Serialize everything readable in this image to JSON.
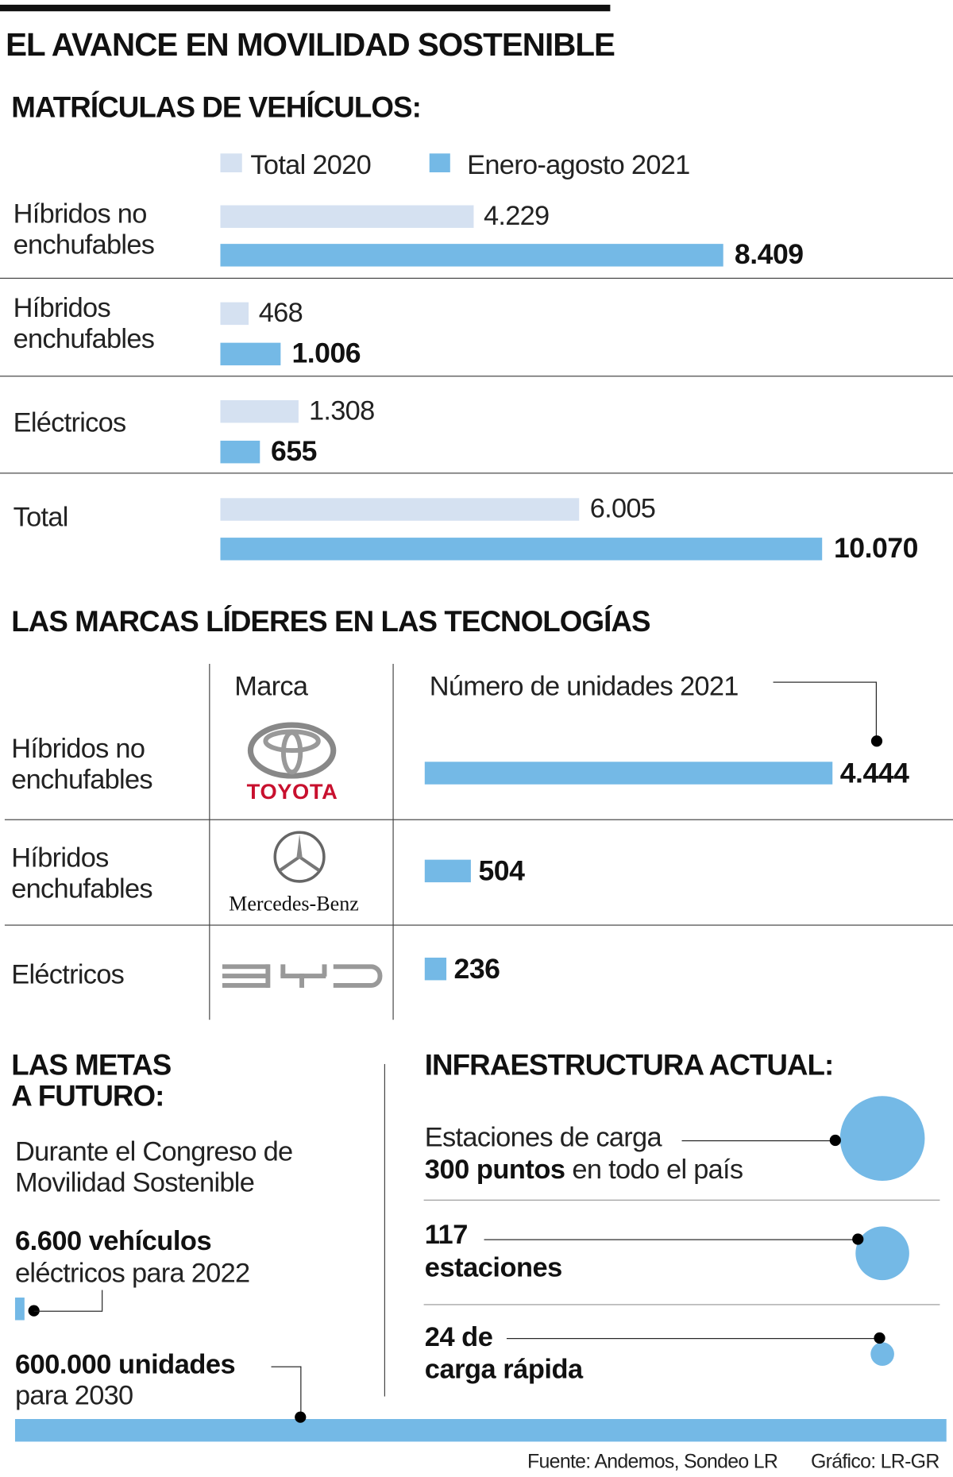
{
  "title": "EL AVANCE EN MOVILIDAD SOSTENIBLE",
  "colors": {
    "total_2020": "#d5e1f1",
    "enero_agosto_2021": "#74b9e6",
    "toyota_red": "#c8102e"
  },
  "chart_data": [
    {
      "type": "bar",
      "title": "MATRÍCULAS DE VEHÍCULOS:",
      "categories": [
        "Híbridos no enchufables",
        "Híbridos enchufables",
        "Eléctricos",
        "Total"
      ],
      "category_lines": [
        [
          "Híbridos no",
          "enchufables"
        ],
        [
          "Híbridos",
          "enchufables"
        ],
        [
          "Eléctricos"
        ],
        [
          "Total"
        ]
      ],
      "series": [
        {
          "name": "Total 2020",
          "values": [
            4229,
            468,
            1308,
            6005
          ],
          "labels": [
            "4.229",
            "468",
            "1.308",
            "6.005"
          ]
        },
        {
          "name": "Enero-agosto 2021",
          "values": [
            8409,
            1006,
            655,
            10070
          ],
          "labels": [
            "8.409",
            "1.006",
            "655",
            "10.070"
          ]
        }
      ],
      "legend": "top",
      "orientation": "horizontal"
    },
    {
      "type": "bar",
      "title": "LAS MARCAS LÍDERES EN LAS TECNOLOGÍAS",
      "column_headers": [
        "Marca",
        "Número de unidades 2021"
      ],
      "categories": [
        "Híbridos no enchufables",
        "Híbridos enchufables",
        "Eléctricos"
      ],
      "category_lines": [
        [
          "Híbridos no",
          "enchufables"
        ],
        [
          "Híbridos",
          "enchufables"
        ],
        [
          "Eléctricos"
        ]
      ],
      "brands": [
        "Toyota",
        "Mercedes-Benz",
        "BYD"
      ],
      "brand_logo_text": [
        "TOYOTA",
        "Mercedes-Benz",
        "BYD"
      ],
      "values": [
        4444,
        504,
        236
      ],
      "labels": [
        "4.444",
        "504",
        "236"
      ],
      "orientation": "horizontal"
    }
  ],
  "metas": {
    "title_lines": [
      "LAS METAS",
      "A FUTURO:"
    ],
    "intro_lines": [
      "Durante el Congreso de",
      "Movilidad Sostenible"
    ],
    "goal1_bold": "6.600 vehículos",
    "goal1_rest": "eléctricos para 2022",
    "goal1_value": 6600,
    "goal2_bold": "600.000 unidades",
    "goal2_rest": "para 2030",
    "goal2_value": 600000
  },
  "infra": {
    "title": "INFRAESTRUCTURA ACTUAL:",
    "items": [
      {
        "line1": "Estaciones de carga",
        "bold": "300 puntos",
        "rest": " en todo el país",
        "value": 300
      },
      {
        "bold": "117",
        "line2": "estaciones",
        "value": 117
      },
      {
        "bold": "24 de",
        "line2": "carga rápida",
        "value": 24
      }
    ]
  },
  "footer": {
    "source": "Fuente: Andemos, Sondeo LR",
    "credit": "Gráfico: LR-GR"
  }
}
